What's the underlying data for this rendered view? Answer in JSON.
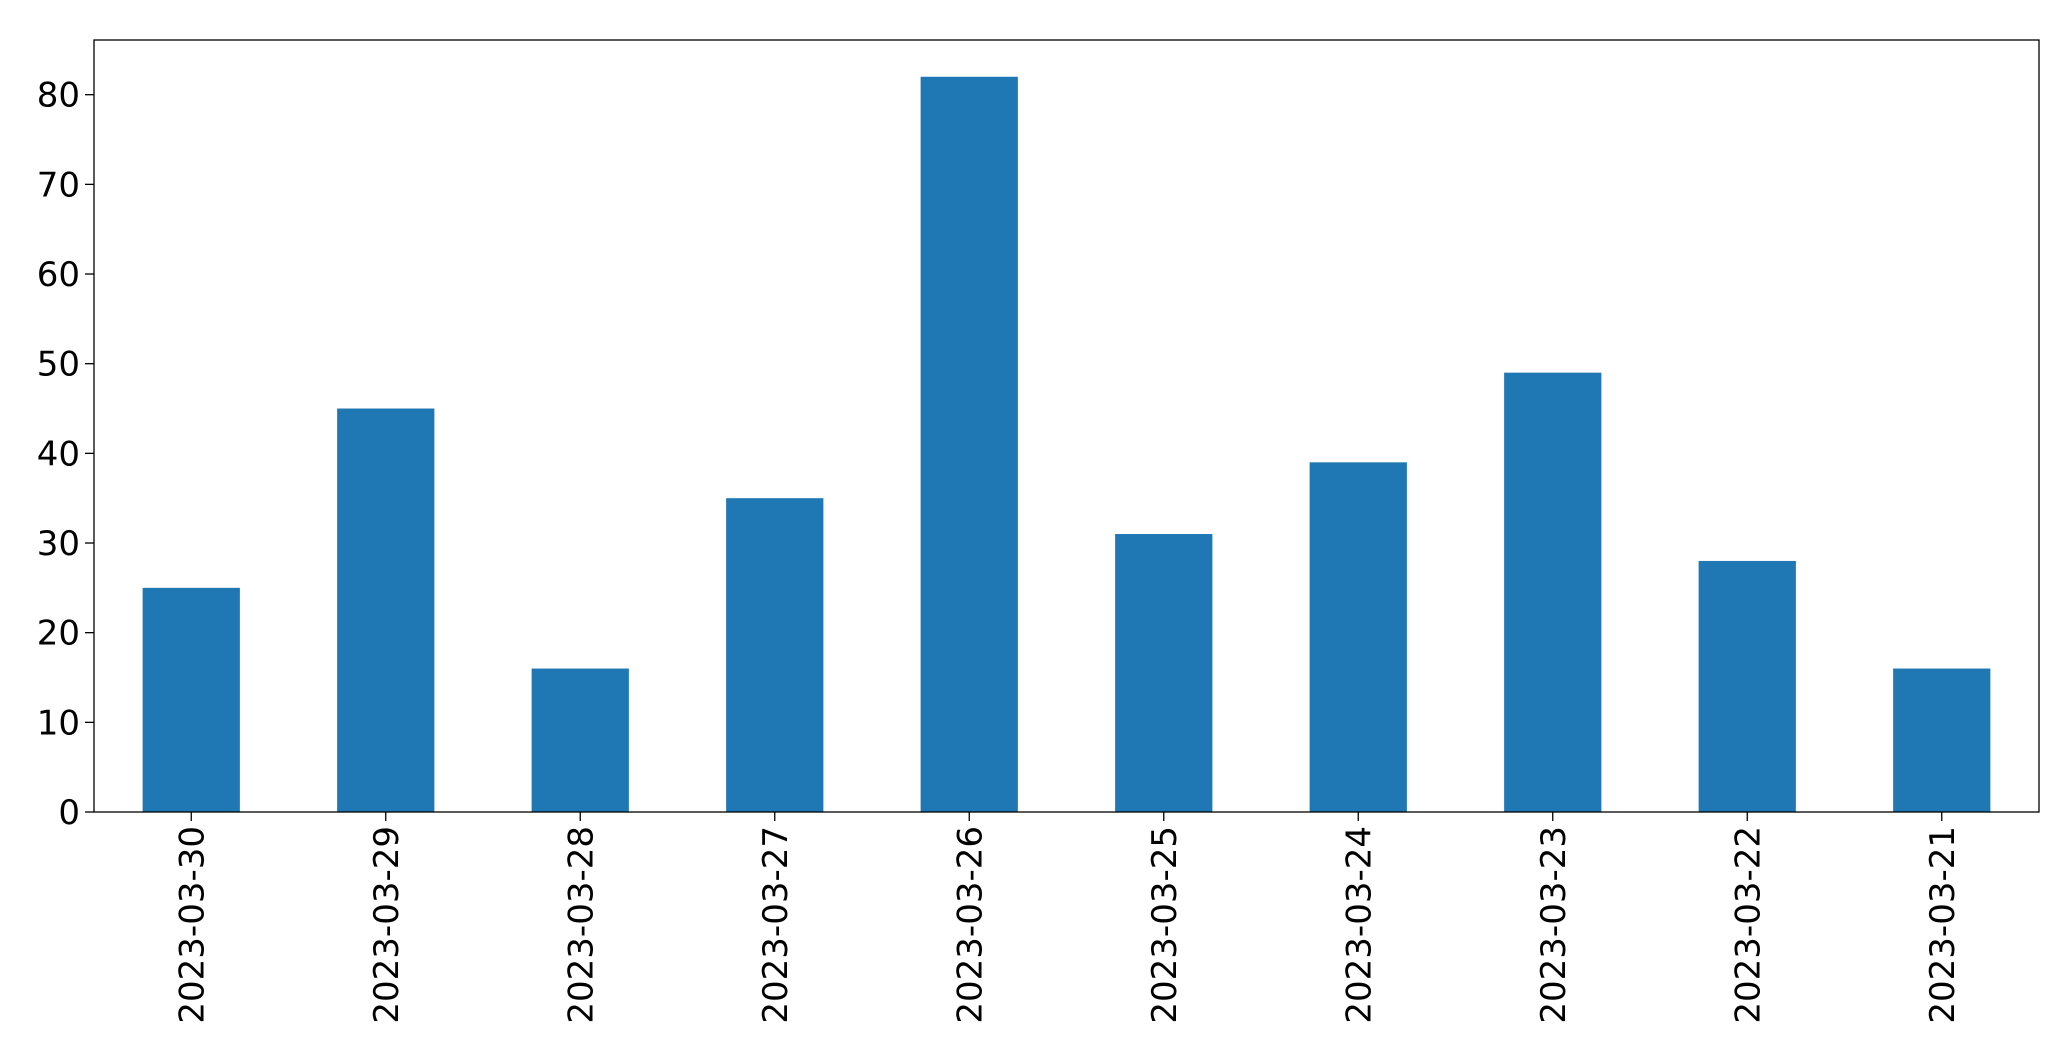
{
  "chart_data": {
    "type": "bar",
    "categories": [
      "2023-03-30",
      "2023-03-29",
      "2023-03-28",
      "2023-03-27",
      "2023-03-26",
      "2023-03-25",
      "2023-03-24",
      "2023-03-23",
      "2023-03-22",
      "2023-03-21"
    ],
    "values": [
      25,
      45,
      16,
      35,
      82,
      31,
      39,
      49,
      28,
      16
    ],
    "color": "#1f77b4",
    "ylim": [
      0,
      86.1
    ],
    "yticks": [
      0,
      10,
      20,
      30,
      40,
      50,
      60,
      70,
      80
    ],
    "grid": false
  }
}
